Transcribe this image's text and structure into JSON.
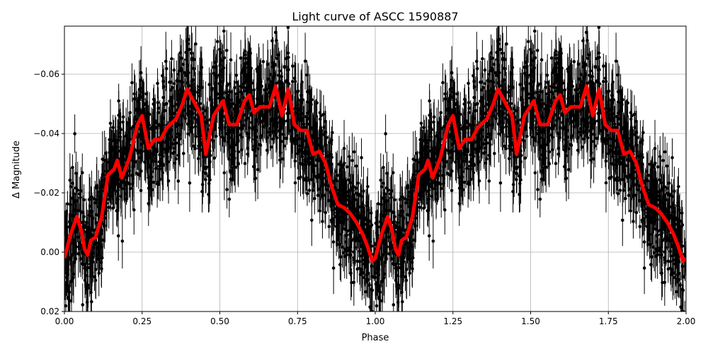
{
  "chart_data": {
    "type": "scatter",
    "title": "Light curve of ASCC 1590887",
    "xlabel": "Phase",
    "ylabel": "Δ Magnitude",
    "xlim": [
      0.0,
      2.0
    ],
    "ylim": [
      0.02,
      -0.0762
    ],
    "y_inverted": true,
    "grid": true,
    "xticks": [
      "0.00",
      "0.25",
      "0.50",
      "0.75",
      "1.00",
      "1.25",
      "1.50",
      "1.75",
      "2.00"
    ],
    "xtick_values": [
      0,
      0.25,
      0.5,
      0.75,
      1.0,
      1.25,
      1.5,
      1.75,
      2.0
    ],
    "yticks": [
      "0.02",
      "0.00",
      "−0.02",
      "−0.04",
      "−0.06"
    ],
    "ytick_values": [
      0.02,
      0.0,
      -0.02,
      -0.04,
      -0.06
    ],
    "points_color": "#000000",
    "points_style": "black dots with vertical error bars, phase-folded and repeated over two cycles",
    "model_curve": {
      "color": "#ff0000",
      "phase": [
        0.0,
        0.02,
        0.04,
        0.055,
        0.065,
        0.075,
        0.085,
        0.1,
        0.12,
        0.14,
        0.16,
        0.17,
        0.185,
        0.21,
        0.235,
        0.25,
        0.27,
        0.29,
        0.31,
        0.33,
        0.36,
        0.38,
        0.395,
        0.42,
        0.44,
        0.455,
        0.48,
        0.51,
        0.53,
        0.555,
        0.58,
        0.595,
        0.61,
        0.63,
        0.66,
        0.68,
        0.7,
        0.72,
        0.74,
        0.76,
        0.78,
        0.8,
        0.82,
        0.84,
        0.86,
        0.88,
        0.9,
        0.92,
        0.94,
        0.96,
        0.975,
        0.99,
        1.0
      ],
      "dmag": [
        0.002,
        -0.006,
        -0.012,
        -0.007,
        -0.001,
        0.001,
        -0.004,
        -0.005,
        -0.012,
        -0.026,
        -0.028,
        -0.031,
        -0.025,
        -0.032,
        -0.043,
        -0.046,
        -0.035,
        -0.038,
        -0.038,
        -0.042,
        -0.045,
        -0.05,
        -0.055,
        -0.05,
        -0.046,
        -0.033,
        -0.046,
        -0.051,
        -0.043,
        -0.043,
        -0.051,
        -0.053,
        -0.047,
        -0.049,
        -0.049,
        -0.056,
        -0.046,
        -0.055,
        -0.043,
        -0.041,
        -0.041,
        -0.033,
        -0.034,
        -0.03,
        -0.022,
        -0.016,
        -0.015,
        -0.013,
        -0.01,
        -0.006,
        -0.002,
        0.003,
        0.002
      ]
    }
  }
}
